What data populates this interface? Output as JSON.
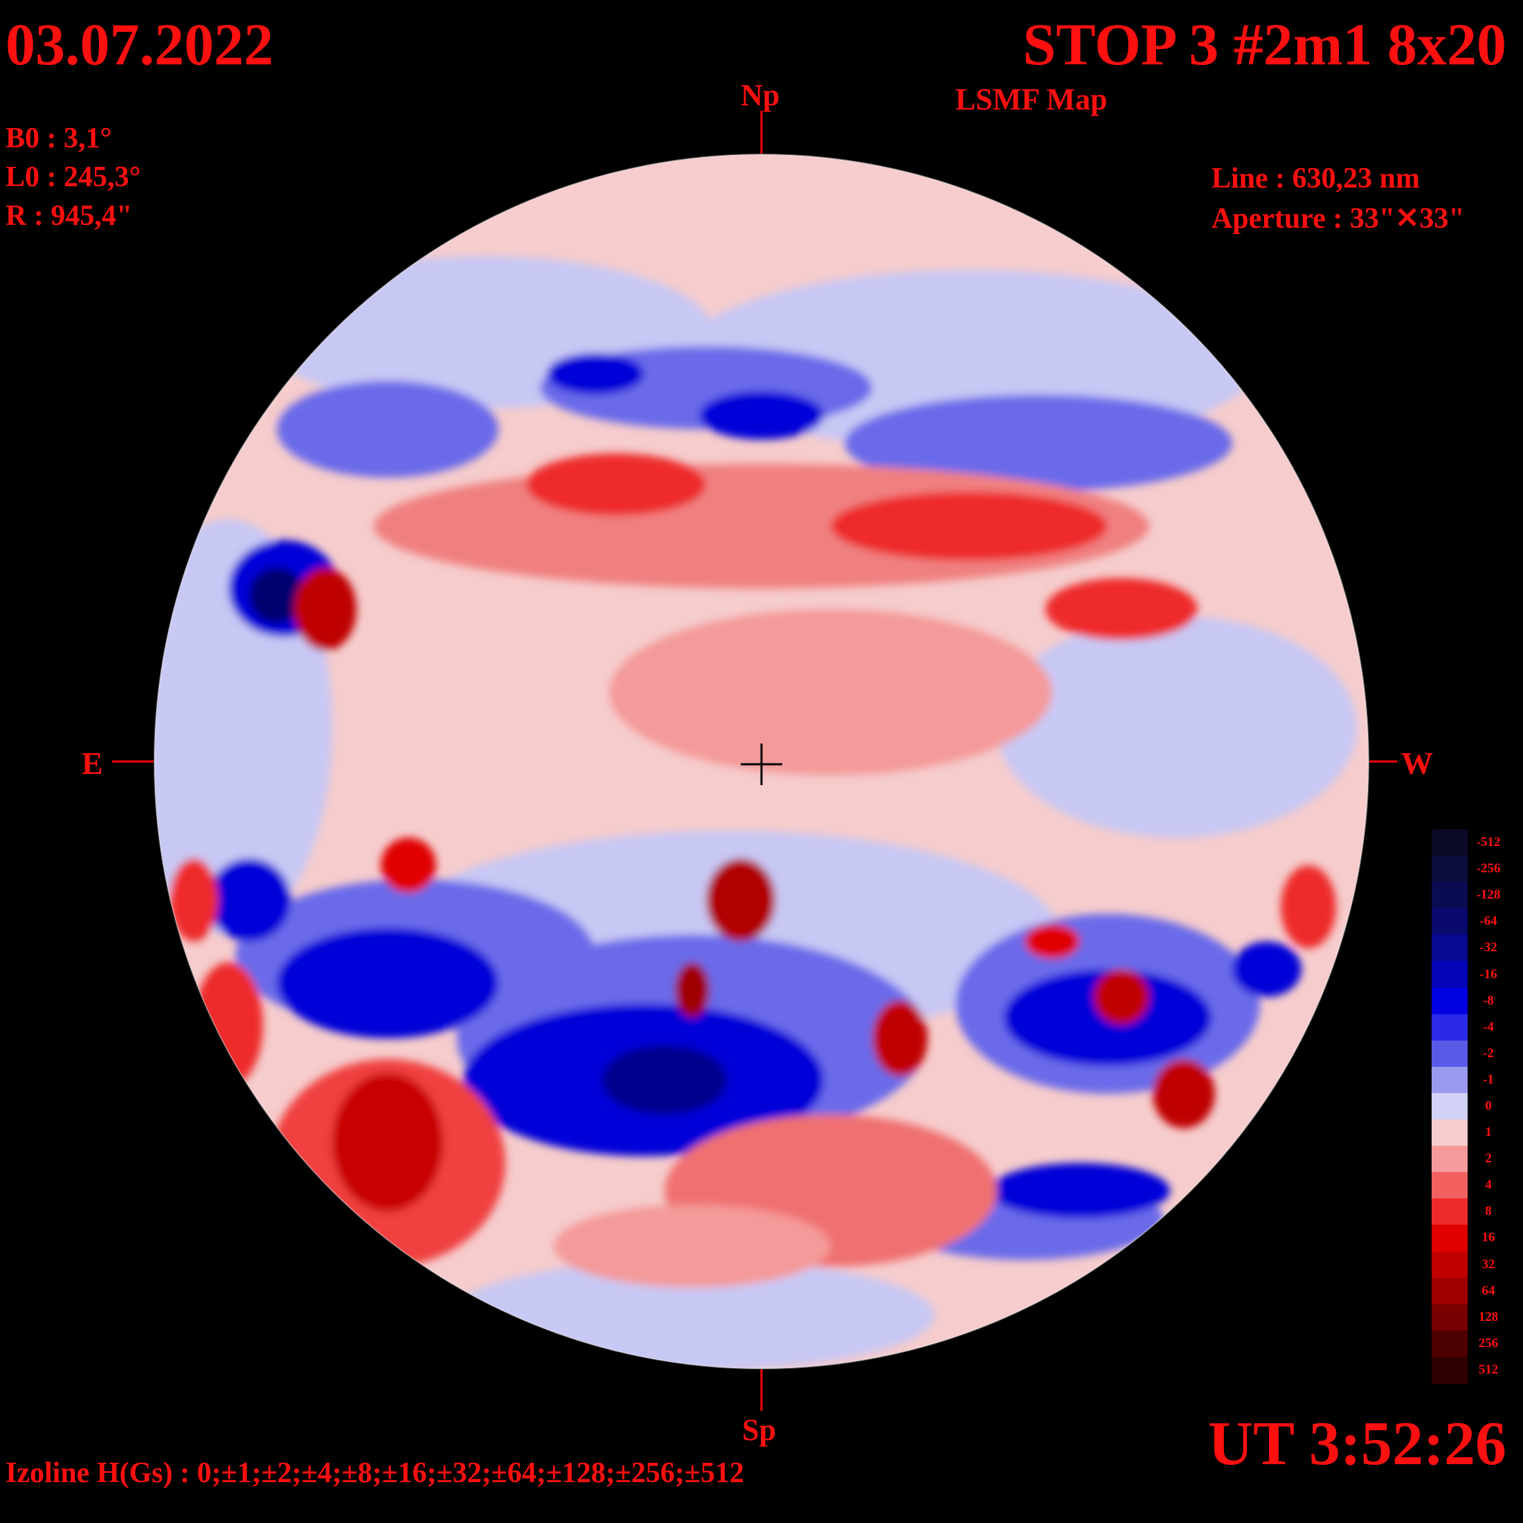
{
  "header": {
    "date": "03.07.2022",
    "title": "STOP 3 #2m1 8x20",
    "subtitle": "LSMF  Map"
  },
  "parameters": {
    "b0": "B0 : 3,1°",
    "l0": "L0 : 245,3°",
    "radius": "R  : 945,4\"",
    "line": "Line :  630,23 nm",
    "aperture": "Aperture : 33\"✕33\""
  },
  "orientation": {
    "north": "Np",
    "south": "Sp",
    "east": "E",
    "west": "W"
  },
  "time": "UT 3:52:26",
  "izoline": "Izoline H(Gs) : 0;±1;±2;±4;±8;±16;±32;±64;±128;±256;±512",
  "scale": {
    "labels": [
      "-512",
      "-256",
      "-128",
      "-64",
      "-32",
      "-16",
      "-8",
      "-4",
      "-2",
      "-1",
      "0",
      "1",
      "2",
      "4",
      "8",
      "16",
      "32",
      "64",
      "128",
      "256",
      "512"
    ],
    "colors": [
      "#0a0a28",
      "#0c0c3c",
      "#0b0b52",
      "#0a0a6e",
      "#080890",
      "#0505b8",
      "#0000e0",
      "#2a2ae8",
      "#5a5ae8",
      "#9a9af0",
      "#d2d2f6",
      "#f6cccc",
      "#f49a9a",
      "#f26060",
      "#ee2a2a",
      "#e00000",
      "#c00000",
      "#a00000",
      "#780000",
      "#4e0000",
      "#300000"
    ]
  }
}
